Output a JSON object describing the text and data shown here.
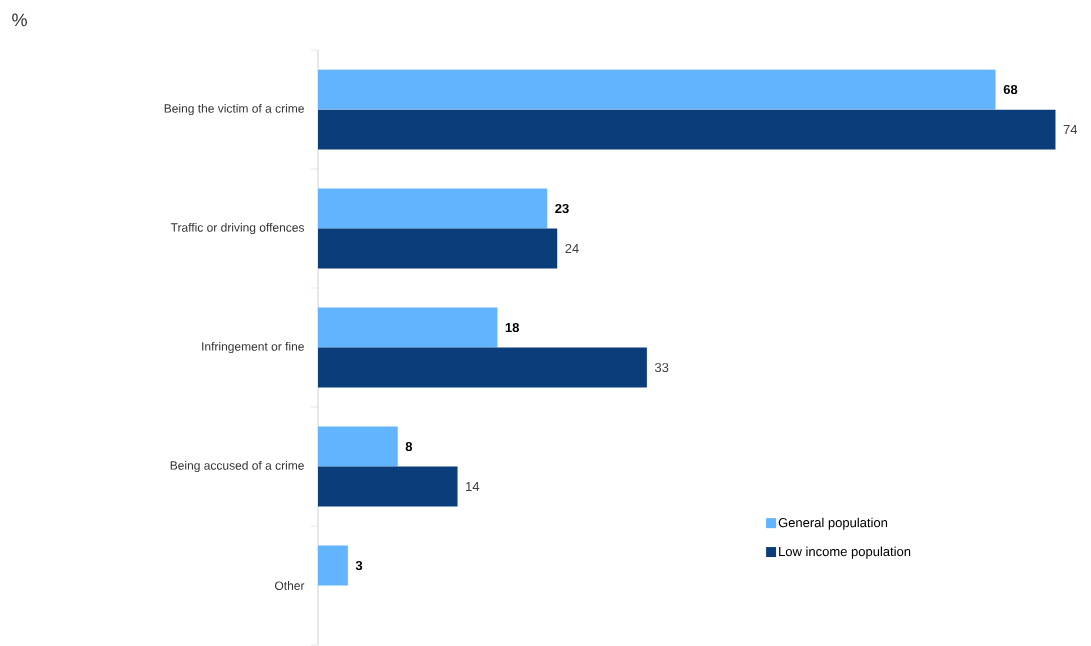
{
  "chart_data": {
    "type": "bar",
    "orientation": "horizontal",
    "categories": [
      "Being the victim of a crime",
      "Traffic or driving offences",
      "Infringement or fine",
      "Being accused of a crime",
      "Other"
    ],
    "series": [
      {
        "name": "General population",
        "color": "#63b4ff",
        "values": [
          68,
          23,
          18,
          8,
          3
        ]
      },
      {
        "name": "Low income population",
        "color": "#0a3d7a",
        "values": [
          74,
          24,
          33,
          14,
          null
        ]
      }
    ],
    "data_labels": true,
    "legend": "bottom right",
    "tick_labels": "y",
    "annotations": [
      "%"
    ]
  }
}
